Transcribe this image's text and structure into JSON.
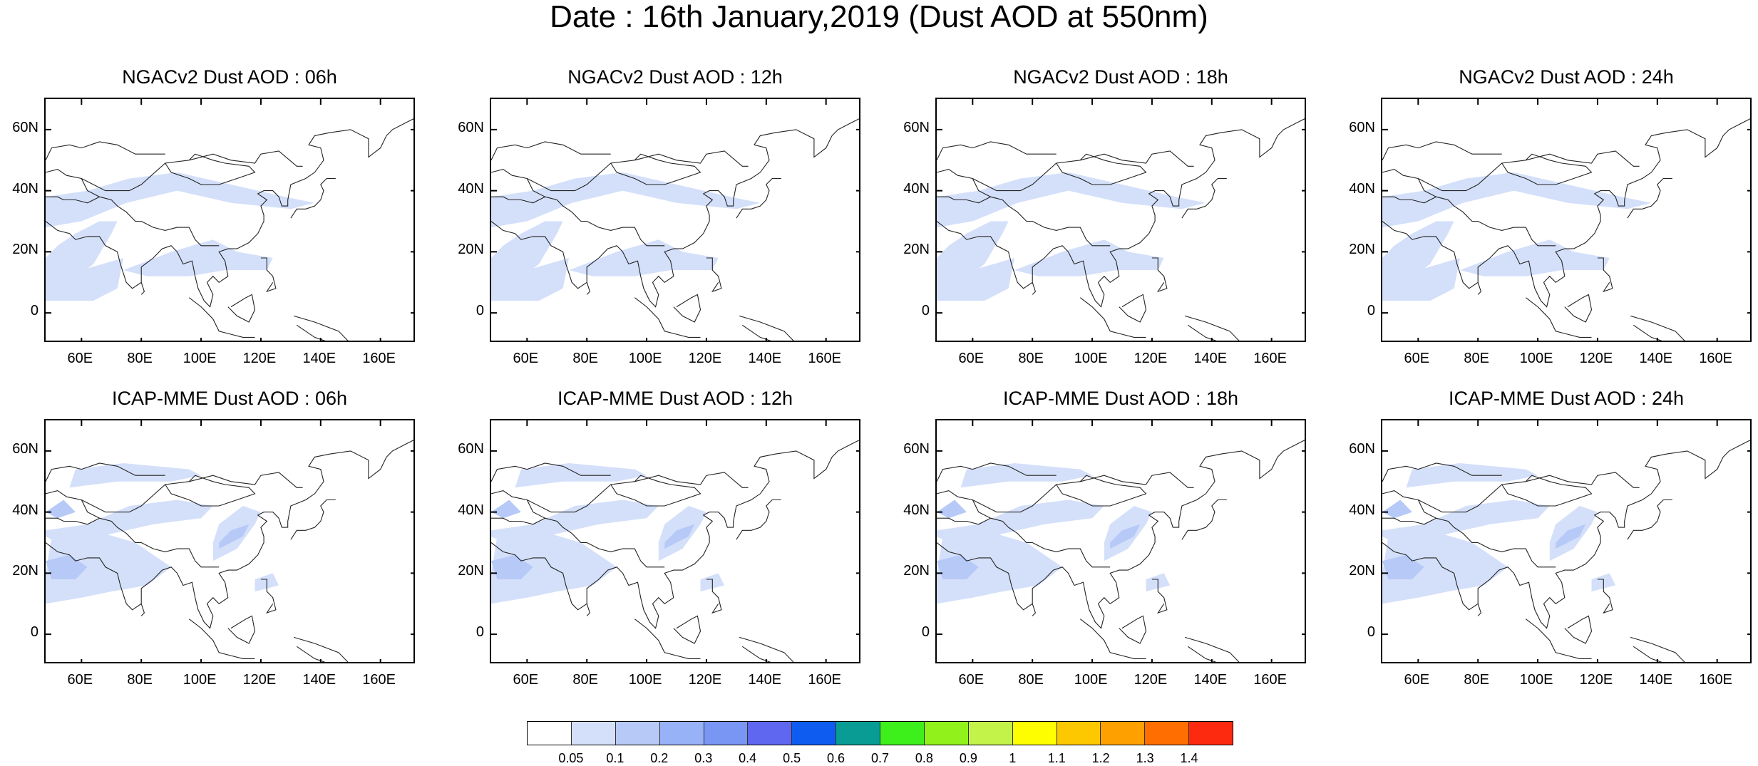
{
  "figure": {
    "title": "Date : 16th January,2019 (Dust AOD at 550nm)"
  },
  "panels": [
    {
      "title": "NGACv2 Dust AOD : 06h",
      "model": "NGACv2",
      "hour": "06h"
    },
    {
      "title": "NGACv2 Dust AOD : 12h",
      "model": "NGACv2",
      "hour": "12h"
    },
    {
      "title": "NGACv2 Dust AOD : 18h",
      "model": "NGACv2",
      "hour": "18h"
    },
    {
      "title": "NGACv2 Dust AOD : 24h",
      "model": "NGACv2",
      "hour": "24h"
    },
    {
      "title": "ICAP-MME Dust AOD : 06h",
      "model": "ICAP-MME",
      "hour": "06h"
    },
    {
      "title": "ICAP-MME Dust AOD : 12h",
      "model": "ICAP-MME",
      "hour": "12h"
    },
    {
      "title": "ICAP-MME Dust AOD : 18h",
      "model": "ICAP-MME",
      "hour": "18h"
    },
    {
      "title": "ICAP-MME Dust AOD : 24h",
      "model": "ICAP-MME",
      "hour": "24h"
    }
  ],
  "axes": {
    "lon_range": [
      48,
      172
    ],
    "lat_range": [
      -10,
      70
    ],
    "lat_ticks": [
      {
        "value": 60,
        "label": "60N"
      },
      {
        "value": 40,
        "label": "40N"
      },
      {
        "value": 20,
        "label": "20N"
      },
      {
        "value": 0,
        "label": "0"
      }
    ],
    "lon_ticks": [
      {
        "value": 60,
        "label": "60E"
      },
      {
        "value": 80,
        "label": "80E"
      },
      {
        "value": 100,
        "label": "100E"
      },
      {
        "value": 120,
        "label": "120E"
      },
      {
        "value": 140,
        "label": "140E"
      },
      {
        "value": 160,
        "label": "160E"
      }
    ]
  },
  "colorbar": {
    "labels": [
      "0.05",
      "0.1",
      "0.2",
      "0.3",
      "0.4",
      "0.5",
      "0.6",
      "0.7",
      "0.8",
      "0.9",
      "1",
      "1.1",
      "1.2",
      "1.3",
      "1.4"
    ],
    "colors": [
      "#ffffff",
      "#d4e0fa",
      "#b6c9f7",
      "#97b2f6",
      "#7a96f5",
      "#5f66f0",
      "#0f5cf0",
      "#089c94",
      "#3ef01b",
      "#90f21a",
      "#c3f248",
      "#fefe00",
      "#fec800",
      "#fea000",
      "#fe6e00",
      "#fe2a10"
    ]
  }
}
